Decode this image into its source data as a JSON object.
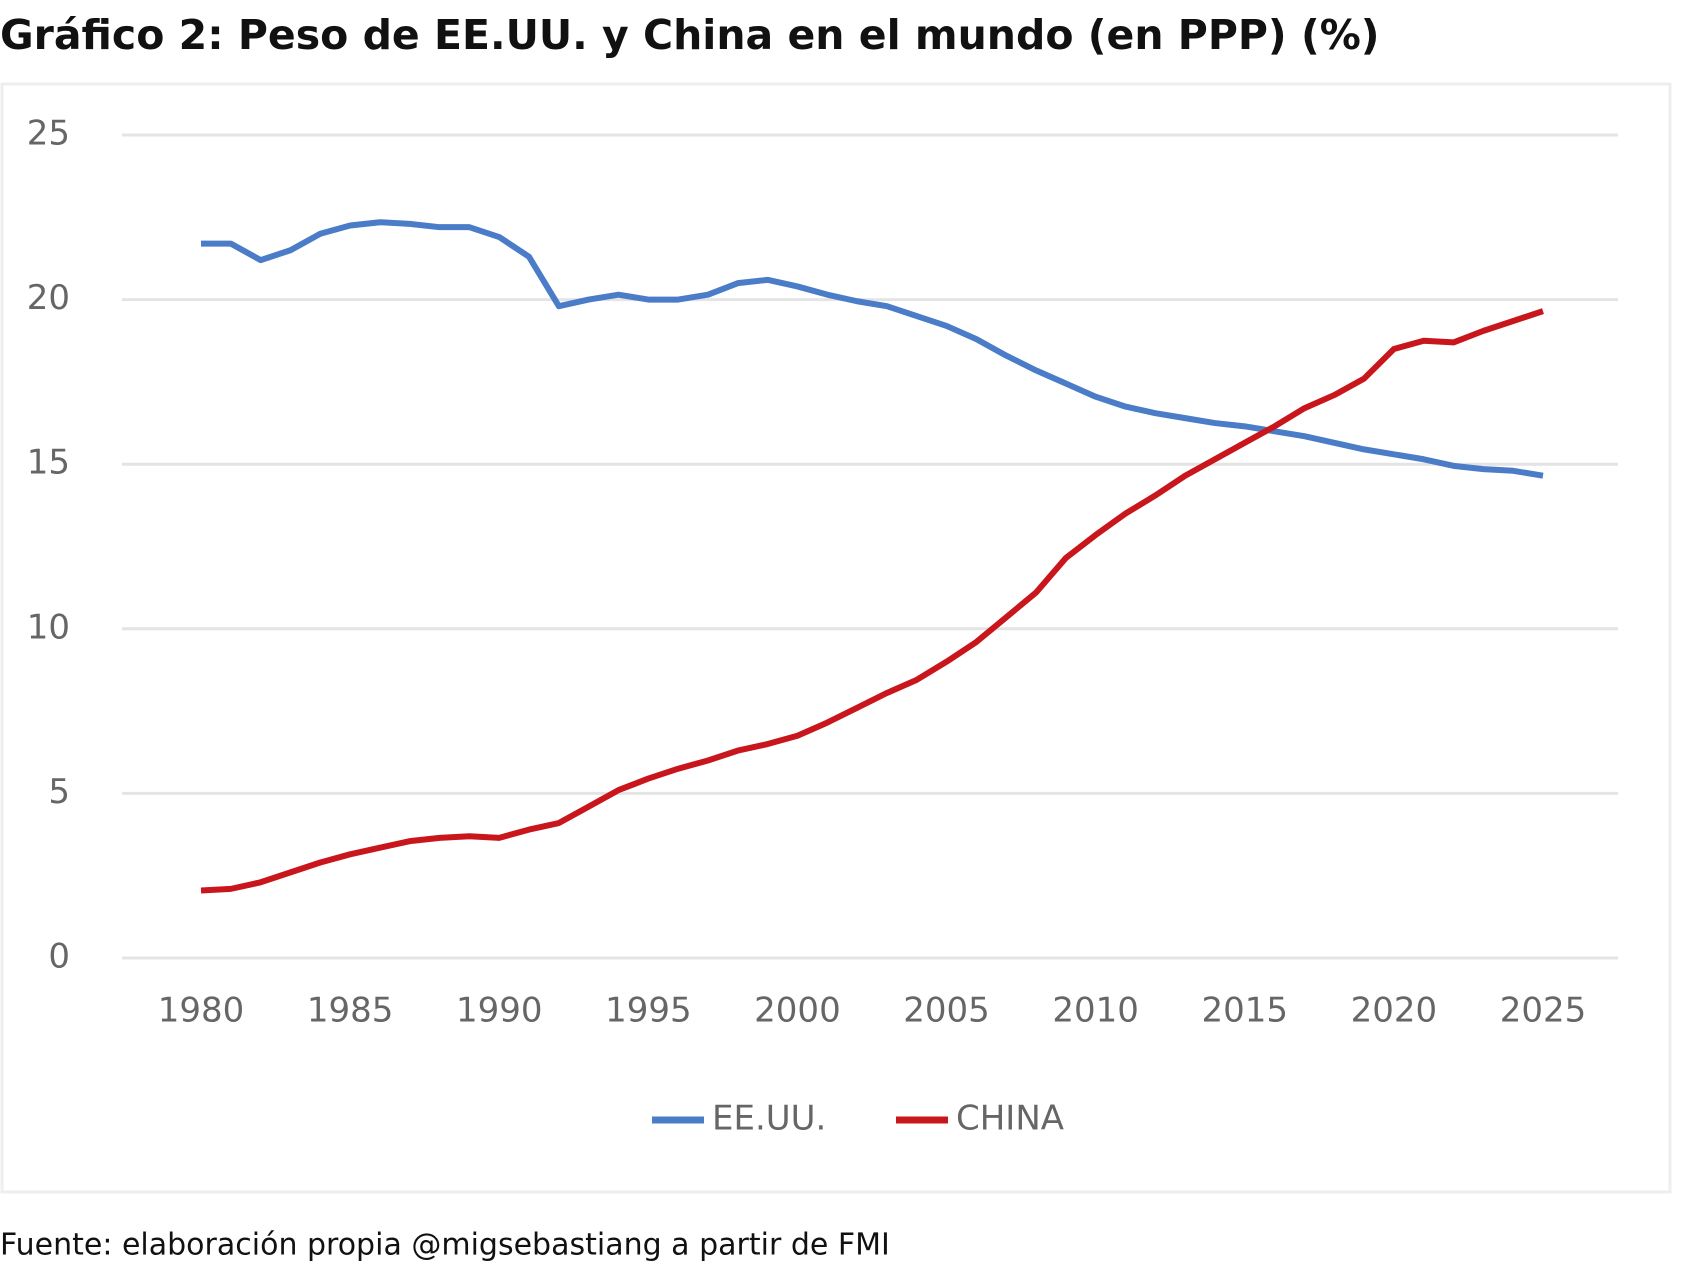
{
  "chart_data": {
    "type": "line",
    "title": "Gráfico 2: Peso de EE.UU. y China en el mundo (en PPP) (%)",
    "source": "Fuente: elaboración propia @migsebastiang a partir de FMI",
    "x": [
      1980,
      1981,
      1982,
      1983,
      1984,
      1985,
      1986,
      1987,
      1988,
      1989,
      1990,
      1991,
      1992,
      1993,
      1994,
      1995,
      1996,
      1997,
      1998,
      1999,
      2000,
      2001,
      2002,
      2003,
      2004,
      2005,
      2006,
      2007,
      2008,
      2009,
      2010,
      2011,
      2012,
      2013,
      2014,
      2015,
      2016,
      2017,
      2018,
      2019,
      2020,
      2021,
      2022,
      2023,
      2024,
      2025
    ],
    "series": [
      {
        "name": "EE.UU.",
        "color": "#4a7cc8",
        "values": [
          21.7,
          21.7,
          21.2,
          21.5,
          22.0,
          22.25,
          22.35,
          22.3,
          22.2,
          22.2,
          21.9,
          21.3,
          19.8,
          20.0,
          20.15,
          20.0,
          20.0,
          20.15,
          20.5,
          20.6,
          20.4,
          20.15,
          19.95,
          19.8,
          19.5,
          19.2,
          18.8,
          18.3,
          17.85,
          17.45,
          17.05,
          16.75,
          16.55,
          16.4,
          16.25,
          16.15,
          16.0,
          15.85,
          15.65,
          15.45,
          15.3,
          15.15,
          14.95,
          14.85,
          14.8,
          14.65
        ]
      },
      {
        "name": "CHINA",
        "color": "#c8161c",
        "values": [
          2.05,
          2.1,
          2.3,
          2.6,
          2.9,
          3.15,
          3.35,
          3.55,
          3.65,
          3.7,
          3.65,
          3.9,
          4.1,
          4.6,
          5.1,
          5.45,
          5.75,
          6.0,
          6.3,
          6.5,
          6.75,
          7.15,
          7.6,
          8.05,
          8.45,
          9.0,
          9.6,
          10.35,
          11.1,
          12.15,
          12.85,
          13.5,
          14.05,
          14.65,
          15.15,
          15.65,
          16.15,
          16.7,
          17.1,
          17.6,
          18.5,
          18.75,
          18.7,
          19.05,
          19.35,
          19.65
        ]
      }
    ],
    "xlim": [
      1980,
      2025
    ],
    "xticks": [
      1980,
      1985,
      1990,
      1995,
      2000,
      2005,
      2010,
      2015,
      2020,
      2025
    ],
    "ylim": [
      0,
      25
    ],
    "yticks": [
      0,
      5,
      10,
      15,
      20,
      25
    ],
    "grid": true,
    "legend": "bottom"
  }
}
